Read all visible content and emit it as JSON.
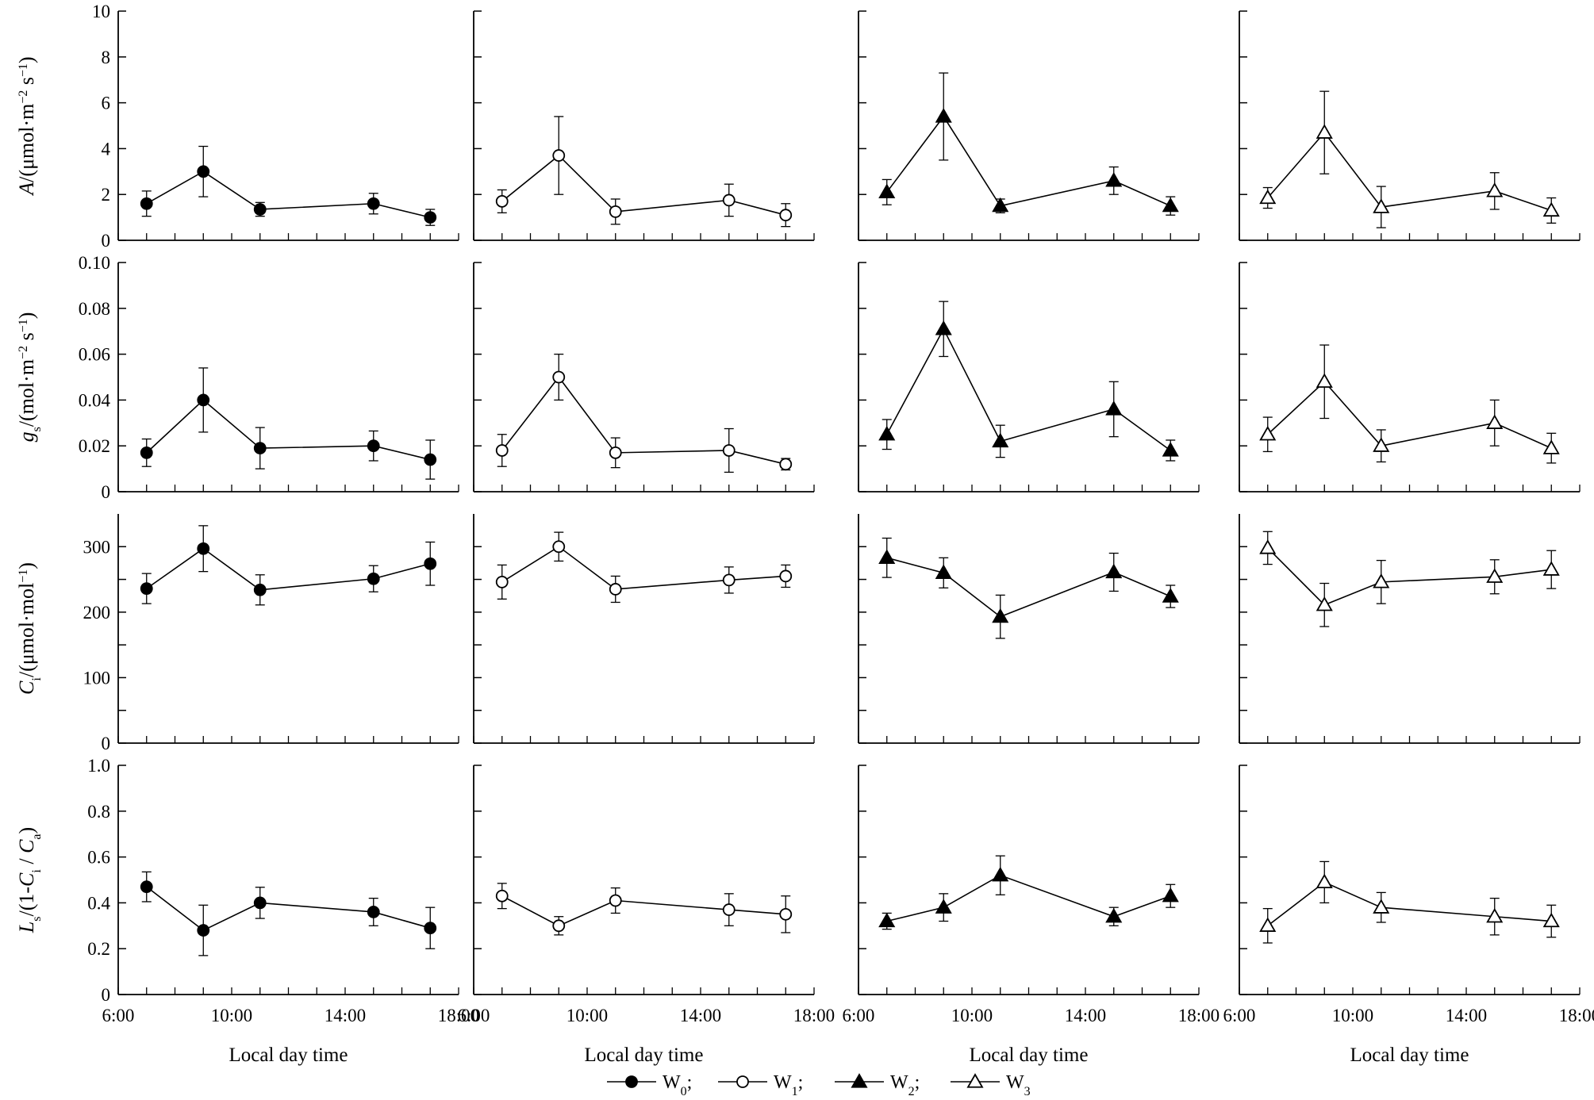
{
  "chart_data": {
    "type": "line",
    "layout": "4 rows x 4 columns of panels",
    "x": [
      "7:00",
      "9:00",
      "11:00",
      "15:00",
      "17:00"
    ],
    "x_hours": [
      7,
      9,
      11,
      15,
      17
    ],
    "xlim": [
      6,
      18
    ],
    "xticks": [
      "6:00",
      "10:00",
      "14:00",
      "18:00"
    ],
    "xlabel": "Local day time",
    "treatments": [
      {
        "name": "W0",
        "base": "W",
        "sub": "0",
        "marker": "filled-circle"
      },
      {
        "name": "W1",
        "base": "W",
        "sub": "1",
        "marker": "open-circle"
      },
      {
        "name": "W2",
        "base": "W",
        "sub": "2",
        "marker": "filled-triangle"
      },
      {
        "name": "W3",
        "base": "W",
        "sub": "3",
        "marker": "open-triangle"
      }
    ],
    "rows": [
      {
        "id": "A",
        "ylabel_parts": [
          [
            "A",
            "i"
          ],
          [
            "/(μmol·m",
            "n"
          ],
          [
            "−2",
            "sup"
          ],
          [
            " s",
            "n"
          ],
          [
            "−1",
            "sup"
          ],
          [
            ")",
            "n"
          ]
        ],
        "ylim": [
          0,
          10
        ],
        "ytick_values": [
          0,
          2,
          4,
          6,
          8,
          10
        ],
        "ytick_labels": [
          "0",
          "2",
          "4",
          "6",
          "8",
          "10"
        ],
        "series": [
          {
            "name": "W0",
            "values": [
              1.6,
              3.0,
              1.35,
              1.6,
              1.0
            ],
            "errors": [
              0.55,
              1.1,
              0.3,
              0.45,
              0.35
            ]
          },
          {
            "name": "W1",
            "values": [
              1.7,
              3.7,
              1.25,
              1.75,
              1.1
            ],
            "errors": [
              0.5,
              1.7,
              0.55,
              0.7,
              0.5
            ]
          },
          {
            "name": "W2",
            "values": [
              2.1,
              5.4,
              1.5,
              2.6,
              1.5
            ],
            "errors": [
              0.55,
              1.9,
              0.3,
              0.6,
              0.4
            ]
          },
          {
            "name": "W3",
            "values": [
              1.85,
              4.7,
              1.45,
              2.15,
              1.3
            ],
            "errors": [
              0.45,
              1.8,
              0.9,
              0.8,
              0.55
            ]
          }
        ]
      },
      {
        "id": "gs",
        "ylabel_parts": [
          [
            "g",
            "i"
          ],
          [
            "s",
            "sub"
          ],
          [
            "/(mol·m",
            "n"
          ],
          [
            "−2",
            "sup"
          ],
          [
            " s",
            "n"
          ],
          [
            "−1",
            "sup"
          ],
          [
            ")",
            "n"
          ]
        ],
        "ylim": [
          0,
          0.1
        ],
        "ytick_values": [
          0,
          0.02,
          0.04,
          0.06,
          0.08,
          0.1
        ],
        "ytick_labels": [
          "0",
          "0.02",
          "0.04",
          "0.06",
          "0.08",
          "0.10"
        ],
        "series": [
          {
            "name": "W0",
            "values": [
              0.017,
              0.04,
              0.019,
              0.02,
              0.014
            ],
            "errors": [
              0.006,
              0.014,
              0.009,
              0.0065,
              0.0085
            ]
          },
          {
            "name": "W1",
            "values": [
              0.018,
              0.05,
              0.017,
              0.018,
              0.012
            ],
            "errors": [
              0.007,
              0.01,
              0.0065,
              0.0095,
              0.0025
            ]
          },
          {
            "name": "W2",
            "values": [
              0.025,
              0.071,
              0.022,
              0.036,
              0.018
            ],
            "errors": [
              0.0065,
              0.012,
              0.007,
              0.012,
              0.0045
            ]
          },
          {
            "name": "W3",
            "values": [
              0.025,
              0.048,
              0.02,
              0.03,
              0.019
            ],
            "errors": [
              0.0075,
              0.016,
              0.007,
              0.01,
              0.0065
            ]
          }
        ]
      },
      {
        "id": "Ci",
        "ylabel_parts": [
          [
            "C",
            "i"
          ],
          [
            "i",
            "sub"
          ],
          [
            "/(μmol·mol",
            "n"
          ],
          [
            "−1",
            "sup"
          ],
          [
            ")",
            "n"
          ]
        ],
        "ylim": [
          0,
          350
        ],
        "ytick_values": [
          0,
          50,
          100,
          150,
          200,
          250,
          300
        ],
        "ytick_labels": [
          "0",
          "",
          "100",
          "",
          "200",
          "",
          "300"
        ],
        "series": [
          {
            "name": "W0",
            "values": [
              236,
              297,
              234,
              251,
              274
            ],
            "errors": [
              23,
              35,
              23,
              20,
              33
            ]
          },
          {
            "name": "W1",
            "values": [
              246,
              300,
              235,
              249,
              255
            ],
            "errors": [
              26,
              22,
              20,
              20,
              17
            ]
          },
          {
            "name": "W2",
            "values": [
              283,
              260,
              193,
              261,
              224
            ],
            "errors": [
              30,
              23,
              33,
              29,
              17
            ]
          },
          {
            "name": "W3",
            "values": [
              298,
              211,
              246,
              254,
              265
            ],
            "errors": [
              25,
              33,
              33,
              26,
              29
            ]
          }
        ]
      },
      {
        "id": "Ls",
        "ylabel_parts": [
          [
            "L",
            "i"
          ],
          [
            "s",
            "sub"
          ],
          [
            "/(1-",
            "n"
          ],
          [
            "C",
            "i"
          ],
          [
            "i",
            "sub"
          ],
          [
            " / ",
            "n"
          ],
          [
            "C",
            "i"
          ],
          [
            "a",
            "sub"
          ],
          [
            ")",
            "n"
          ]
        ],
        "ylim": [
          0,
          1.0
        ],
        "ytick_values": [
          0,
          0.2,
          0.4,
          0.6,
          0.8,
          1.0
        ],
        "ytick_labels": [
          "0",
          "0.2",
          "0.4",
          "0.6",
          "0.8",
          "1.0"
        ],
        "series": [
          {
            "name": "W0",
            "values": [
              0.47,
              0.28,
              0.4,
              0.36,
              0.29
            ],
            "errors": [
              0.065,
              0.11,
              0.068,
              0.06,
              0.09
            ]
          },
          {
            "name": "W1",
            "values": [
              0.43,
              0.3,
              0.41,
              0.37,
              0.35
            ],
            "errors": [
              0.055,
              0.04,
              0.055,
              0.07,
              0.08
            ]
          },
          {
            "name": "W2",
            "values": [
              0.32,
              0.38,
              0.52,
              0.34,
              0.43
            ],
            "errors": [
              0.035,
              0.06,
              0.085,
              0.04,
              0.05
            ]
          },
          {
            "name": "W3",
            "values": [
              0.3,
              0.49,
              0.38,
              0.34,
              0.32
            ],
            "errors": [
              0.075,
              0.09,
              0.065,
              0.08,
              0.07
            ]
          }
        ]
      }
    ],
    "legend": {
      "position": "bottom-center",
      "entries": [
        "W0",
        "W1",
        "W2",
        "W3"
      ],
      "separators": [
        ";",
        ";",
        ";",
        ""
      ]
    }
  }
}
